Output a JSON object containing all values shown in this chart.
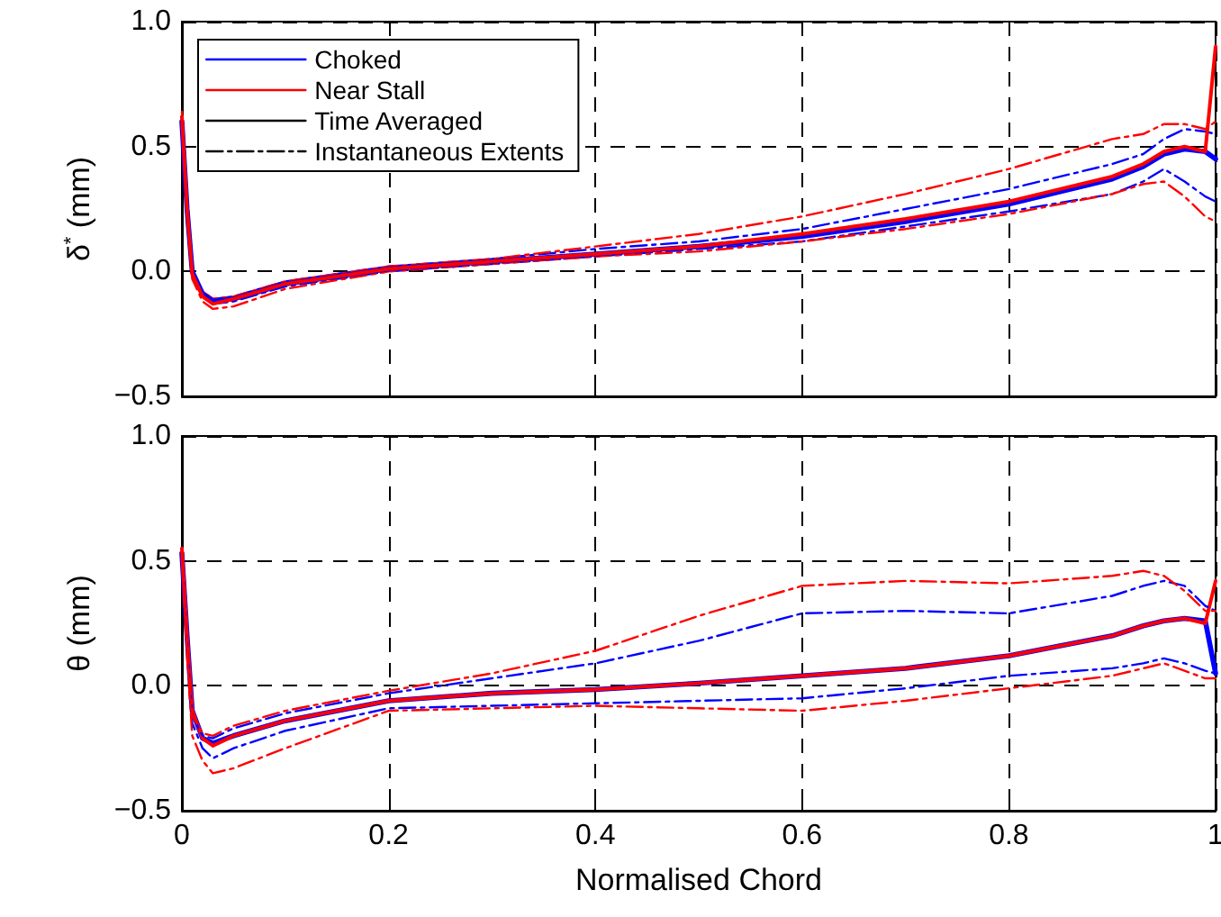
{
  "chart_data": [
    {
      "type": "line",
      "ylabel": "δ$^{*}$ (mm)",
      "xlim": [
        0,
        1
      ],
      "ylim": [
        -0.5,
        1
      ],
      "xticks": [
        0,
        0.2,
        0.4,
        0.6,
        0.8,
        1
      ],
      "yticks": [
        {
          "value": -0.5,
          "label": "−0.5"
        },
        {
          "value": 0,
          "label": "0.0"
        },
        {
          "value": 0.5,
          "label": "0.5"
        },
        {
          "value": 1,
          "label": "1.0"
        }
      ],
      "tick_labels": "y",
      "grid": true,
      "legend": "top left",
      "marker": "none",
      "x": [
        0,
        0.005,
        0.01,
        0.02,
        0.03,
        0.05,
        0.1,
        0.2,
        0.3,
        0.4,
        0.5,
        0.6,
        0.7,
        0.8,
        0.9,
        0.93,
        0.95,
        0.97,
        0.99,
        1.0
      ],
      "series": [
        {
          "name": "Choked",
          "color": "#0000ff",
          "line_style": "solid",
          "values": [
            0.6,
            0.25,
            0.0,
            -0.09,
            -0.12,
            -0.11,
            -0.05,
            0.01,
            0.04,
            0.07,
            0.1,
            0.14,
            0.2,
            0.27,
            0.37,
            0.42,
            0.47,
            0.49,
            0.48,
            0.45
          ]
        },
        {
          "name": "Near Stall",
          "color": "#ff0000",
          "line_style": "solid",
          "values": [
            0.62,
            0.25,
            -0.01,
            -0.1,
            -0.13,
            -0.11,
            -0.05,
            0.01,
            0.04,
            0.07,
            0.1,
            0.15,
            0.21,
            0.28,
            0.38,
            0.43,
            0.48,
            0.5,
            0.48,
            0.9
          ]
        },
        {
          "name": "Time Averaged",
          "color": "#000000",
          "line_style": "solid",
          "values": [
            null,
            null,
            null,
            null,
            null,
            null,
            null,
            null,
            null,
            null,
            null,
            null,
            null,
            null,
            null,
            null,
            null,
            null,
            null,
            null
          ]
        },
        {
          "name": "Instantaneous Extents",
          "color": "#000000",
          "line_style": "dashdot",
          "values": [
            null,
            null,
            null,
            null,
            null,
            null,
            null,
            null,
            null,
            null,
            null,
            null,
            null,
            null,
            null,
            null,
            null,
            null,
            null,
            null
          ]
        },
        {
          "color": "#0000ff",
          "line_style": "dashdot",
          "values": [
            0.62,
            0.26,
            0.0,
            -0.08,
            -0.11,
            -0.1,
            -0.04,
            0.02,
            0.05,
            0.09,
            0.12,
            0.17,
            0.25,
            0.33,
            0.43,
            0.47,
            0.53,
            0.57,
            0.56,
            0.55
          ]
        },
        {
          "color": "#0000ff",
          "line_style": "dashdot",
          "values": [
            0.58,
            0.22,
            -0.02,
            -0.1,
            -0.13,
            -0.12,
            -0.06,
            0.0,
            0.03,
            0.06,
            0.09,
            0.12,
            0.18,
            0.24,
            0.31,
            0.36,
            0.41,
            0.36,
            0.3,
            0.28
          ]
        },
        {
          "color": "#ff0000",
          "line_style": "dashdot",
          "values": [
            0.64,
            0.26,
            0.0,
            -0.08,
            -0.11,
            -0.1,
            -0.04,
            0.02,
            0.05,
            0.1,
            0.15,
            0.22,
            0.31,
            0.41,
            0.53,
            0.55,
            0.59,
            0.59,
            0.57,
            0.6
          ]
        },
        {
          "color": "#ff0000",
          "line_style": "dashdot",
          "values": [
            0.6,
            0.2,
            -0.03,
            -0.12,
            -0.15,
            -0.14,
            -0.07,
            0.0,
            0.03,
            0.06,
            0.08,
            0.12,
            0.17,
            0.23,
            0.31,
            0.35,
            0.36,
            0.3,
            0.22,
            0.2
          ]
        }
      ]
    },
    {
      "type": "line",
      "ylabel": "θ (mm)",
      "xlabel": "Normalised Chord",
      "xlim": [
        0,
        1
      ],
      "ylim": [
        -0.5,
        1
      ],
      "xticks": [
        0,
        0.2,
        0.4,
        0.6,
        0.8,
        1
      ],
      "yticks": [
        {
          "value": -0.5,
          "label": "−0.5"
        },
        {
          "value": 0,
          "label": "0.0"
        },
        {
          "value": 0.5,
          "label": "0.5"
        },
        {
          "value": 1,
          "label": "1.0"
        }
      ],
      "grid": true,
      "marker": "none",
      "x": [
        0,
        0.005,
        0.01,
        0.02,
        0.03,
        0.05,
        0.1,
        0.2,
        0.3,
        0.4,
        0.5,
        0.6,
        0.7,
        0.8,
        0.9,
        0.93,
        0.95,
        0.97,
        0.99,
        1.0
      ],
      "series": [
        {
          "color": "#0000ff",
          "line_style": "solid",
          "values": [
            0.53,
            0.2,
            -0.1,
            -0.21,
            -0.23,
            -0.2,
            -0.14,
            -0.06,
            -0.03,
            -0.015,
            0.01,
            0.04,
            0.07,
            0.12,
            0.2,
            0.24,
            0.26,
            0.27,
            0.26,
            0.05
          ]
        },
        {
          "color": "#ff0000",
          "line_style": "solid",
          "values": [
            0.55,
            0.2,
            -0.1,
            -0.21,
            -0.24,
            -0.2,
            -0.14,
            -0.06,
            -0.03,
            -0.015,
            0.01,
            0.04,
            0.07,
            0.12,
            0.2,
            0.24,
            0.26,
            0.27,
            0.25,
            0.42
          ]
        },
        {
          "color": "#0000ff",
          "line_style": "dashdot",
          "values": [
            0.5,
            0.15,
            -0.12,
            -0.2,
            -0.21,
            -0.17,
            -0.11,
            -0.03,
            0.03,
            0.09,
            0.18,
            0.29,
            0.3,
            0.29,
            0.36,
            0.4,
            0.42,
            0.4,
            0.32,
            0.3
          ]
        },
        {
          "color": "#0000ff",
          "line_style": "dashdot",
          "values": [
            0.5,
            0.15,
            -0.15,
            -0.25,
            -0.29,
            -0.25,
            -0.18,
            -0.09,
            -0.08,
            -0.07,
            -0.06,
            -0.05,
            -0.01,
            0.04,
            0.07,
            0.09,
            0.11,
            0.09,
            0.06,
            0.05
          ]
        },
        {
          "color": "#ff0000",
          "line_style": "dashdot",
          "values": [
            0.52,
            0.15,
            -0.12,
            -0.19,
            -0.2,
            -0.16,
            -0.1,
            -0.02,
            0.05,
            0.14,
            0.28,
            0.4,
            0.42,
            0.41,
            0.44,
            0.46,
            0.44,
            0.38,
            0.3,
            0.3
          ]
        },
        {
          "color": "#ff0000",
          "line_style": "dashdot",
          "values": [
            0.5,
            0.12,
            -0.2,
            -0.3,
            -0.35,
            -0.33,
            -0.25,
            -0.1,
            -0.09,
            -0.08,
            -0.09,
            -0.1,
            -0.06,
            -0.01,
            0.04,
            0.07,
            0.09,
            0.06,
            0.03,
            0.03
          ]
        }
      ]
    }
  ]
}
